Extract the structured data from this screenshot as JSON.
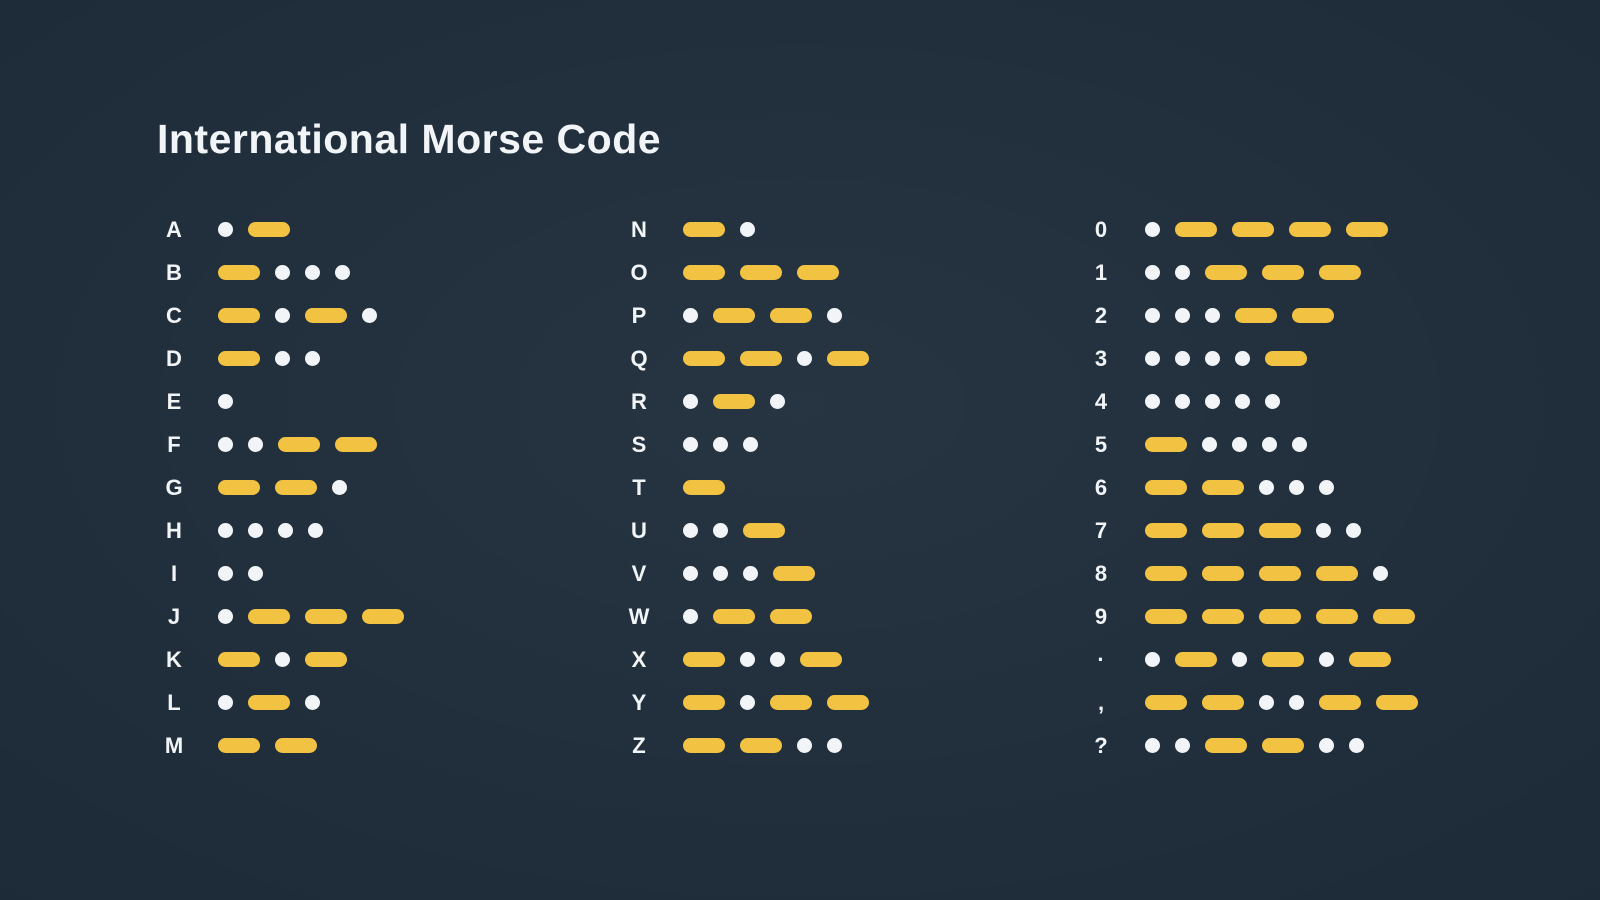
{
  "title": "International Morse Code",
  "colors": {
    "background": "#1f2d3b",
    "dash": "#f2c342",
    "dot": "#f2f5f7",
    "text": "#f2f5f7"
  },
  "columns": [
    {
      "name": "letters-a-m",
      "entries": [
        {
          "char": "A",
          "code": ".-"
        },
        {
          "char": "B",
          "code": "-..."
        },
        {
          "char": "C",
          "code": "-.-."
        },
        {
          "char": "D",
          "code": "-.."
        },
        {
          "char": "E",
          "code": "."
        },
        {
          "char": "F",
          "code": "..--"
        },
        {
          "char": "G",
          "code": "--."
        },
        {
          "char": "H",
          "code": "...."
        },
        {
          "char": "I",
          "code": ".."
        },
        {
          "char": "J",
          "code": ".---"
        },
        {
          "char": "K",
          "code": "-.-"
        },
        {
          "char": "L",
          "code": ".-."
        },
        {
          "char": "M",
          "code": "--"
        }
      ]
    },
    {
      "name": "letters-n-z",
      "entries": [
        {
          "char": "N",
          "code": "-."
        },
        {
          "char": "O",
          "code": "---"
        },
        {
          "char": "P",
          "code": ".--."
        },
        {
          "char": "Q",
          "code": "--.-"
        },
        {
          "char": "R",
          "code": ".-."
        },
        {
          "char": "S",
          "code": "..."
        },
        {
          "char": "T",
          "code": "-"
        },
        {
          "char": "U",
          "code": "..-"
        },
        {
          "char": "V",
          "code": "...-"
        },
        {
          "char": "W",
          "code": ".--"
        },
        {
          "char": "X",
          "code": "-..-"
        },
        {
          "char": "Y",
          "code": "-.--"
        },
        {
          "char": "Z",
          "code": "--.."
        }
      ]
    },
    {
      "name": "digits-and-punctuation",
      "entries": [
        {
          "char": "0",
          "code": ".----"
        },
        {
          "char": "1",
          "code": "..---"
        },
        {
          "char": "2",
          "code": "...--"
        },
        {
          "char": "3",
          "code": "....-"
        },
        {
          "char": "4",
          "code": "....."
        },
        {
          "char": "5",
          "code": "-...."
        },
        {
          "char": "6",
          "code": "--..."
        },
        {
          "char": "7",
          "code": "---.."
        },
        {
          "char": "8",
          "code": "----."
        },
        {
          "char": "9",
          "code": "-----"
        },
        {
          "char": "·",
          "code": ".-.-.-"
        },
        {
          "char": ",",
          "code": "--..--"
        },
        {
          "char": "?",
          "code": "..--.."
        }
      ]
    }
  ]
}
